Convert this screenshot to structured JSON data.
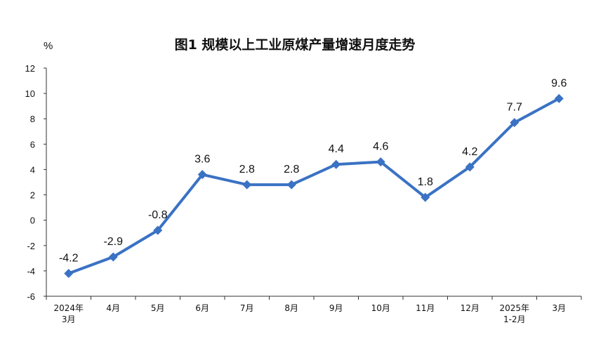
{
  "chart_data": {
    "type": "line",
    "title": "图1  规模以上工业原煤产量增速月度走势",
    "ylabel": "%",
    "xlabel": "",
    "ylim": [
      -6,
      12
    ],
    "yticks": [
      -6,
      -4,
      -2,
      0,
      2,
      4,
      6,
      8,
      10,
      12
    ],
    "categories": [
      [
        "2024年",
        "3月"
      ],
      [
        "4月"
      ],
      [
        "5月"
      ],
      [
        "6月"
      ],
      [
        "7月"
      ],
      [
        "8月"
      ],
      [
        "9月"
      ],
      [
        "10月"
      ],
      [
        "11月"
      ],
      [
        "12月"
      ],
      [
        "2025年",
        "1-2月"
      ],
      [
        "3月"
      ]
    ],
    "series": [
      {
        "values": [
          -4.2,
          -2.9,
          -0.8,
          3.6,
          2.8,
          2.8,
          4.4,
          4.6,
          1.8,
          4.2,
          7.7,
          9.6
        ]
      }
    ],
    "data_labels": [
      "-4.2",
      "-2.9",
      "-0.8",
      "3.6",
      "2.8",
      "2.8",
      "4.4",
      "4.6",
      "1.8",
      "4.2",
      "7.7",
      "9.6"
    ],
    "grid": false,
    "legend": "none",
    "color": "#3a72c4"
  }
}
